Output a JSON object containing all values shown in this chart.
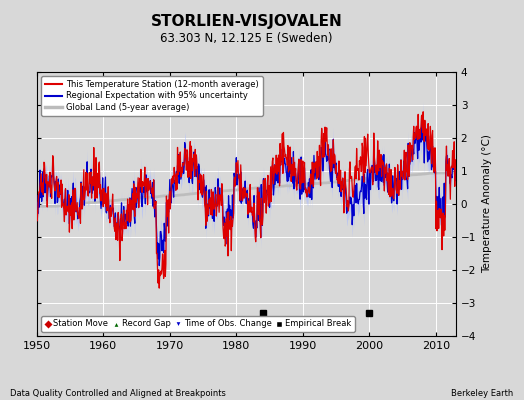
{
  "title": "STORLIEN-VISJOVALEN",
  "subtitle": "63.303 N, 12.125 E (Sweden)",
  "ylabel": "Temperature Anomaly (°C)",
  "xlabel_note": "Data Quality Controlled and Aligned at Breakpoints",
  "xlabel_note_right": "Berkeley Earth",
  "year_start": 1950,
  "year_end": 2013,
  "ylim": [
    -4,
    4
  ],
  "yticks": [
    -4,
    -3,
    -2,
    -1,
    0,
    1,
    2,
    3,
    4
  ],
  "xticks": [
    1950,
    1960,
    1970,
    1980,
    1990,
    2000,
    2010
  ],
  "bg_color": "#d8d8d8",
  "plot_bg_color": "#d8d8d8",
  "grid_color": "#ffffff",
  "red_color": "#dd0000",
  "blue_color": "#0000cc",
  "blue_fill_color": "#aabbff",
  "gray_color": "#bbbbbb",
  "empirical_break_years": [
    1984,
    2000
  ],
  "empirical_break_y": -3.3,
  "seed": 42
}
